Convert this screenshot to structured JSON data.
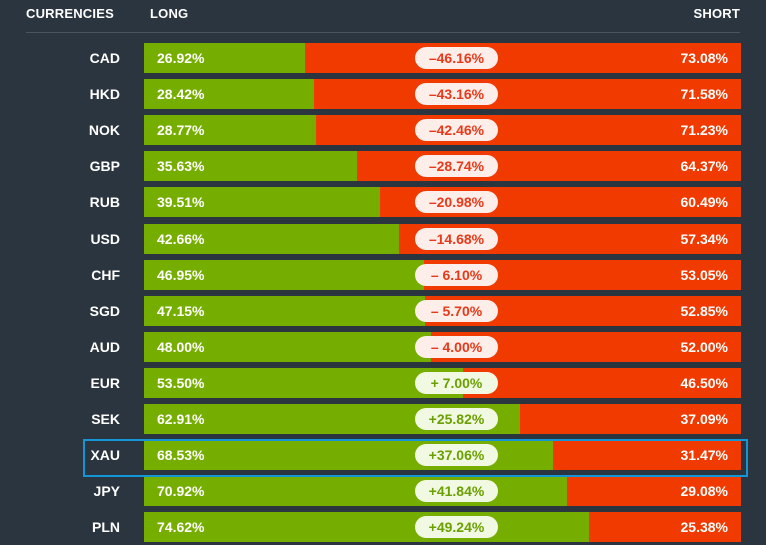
{
  "header": {
    "currencies": "CURRENCIES",
    "long": "LONG",
    "short": "SHORT"
  },
  "colors": {
    "background": "#2b353f",
    "long": "#76ae00",
    "short": "#f03a00",
    "highlight": "#1496d6"
  },
  "rows": [
    {
      "currency": "CAD",
      "long": "26.92%",
      "short": "73.08%",
      "diff": "–46.16%",
      "long_pct": 26.92,
      "positive": false
    },
    {
      "currency": "HKD",
      "long": "28.42%",
      "short": "71.58%",
      "diff": "–43.16%",
      "long_pct": 28.42,
      "positive": false
    },
    {
      "currency": "NOK",
      "long": "28.77%",
      "short": "71.23%",
      "diff": "–42.46%",
      "long_pct": 28.77,
      "positive": false
    },
    {
      "currency": "GBP",
      "long": "35.63%",
      "short": "64.37%",
      "diff": "–28.74%",
      "long_pct": 35.63,
      "positive": false
    },
    {
      "currency": "RUB",
      "long": "39.51%",
      "short": "60.49%",
      "diff": "–20.98%",
      "long_pct": 39.51,
      "positive": false
    },
    {
      "currency": "USD",
      "long": "42.66%",
      "short": "57.34%",
      "diff": "–14.68%",
      "long_pct": 42.66,
      "positive": false
    },
    {
      "currency": "CHF",
      "long": "46.95%",
      "short": "53.05%",
      "diff": "– 6.10%",
      "long_pct": 46.95,
      "positive": false
    },
    {
      "currency": "SGD",
      "long": "47.15%",
      "short": "52.85%",
      "diff": "– 5.70%",
      "long_pct": 47.15,
      "positive": false
    },
    {
      "currency": "AUD",
      "long": "48.00%",
      "short": "52.00%",
      "diff": "– 4.00%",
      "long_pct": 48.0,
      "positive": false
    },
    {
      "currency": "EUR",
      "long": "53.50%",
      "short": "46.50%",
      "diff": "+ 7.00%",
      "long_pct": 53.5,
      "positive": true
    },
    {
      "currency": "SEK",
      "long": "62.91%",
      "short": "37.09%",
      "diff": "+25.82%",
      "long_pct": 62.91,
      "positive": true
    },
    {
      "currency": "XAU",
      "long": "68.53%",
      "short": "31.47%",
      "diff": "+37.06%",
      "long_pct": 68.53,
      "positive": true,
      "selected": true
    },
    {
      "currency": "JPY",
      "long": "70.92%",
      "short": "29.08%",
      "diff": "+41.84%",
      "long_pct": 70.92,
      "positive": true
    },
    {
      "currency": "PLN",
      "long": "74.62%",
      "short": "25.38%",
      "diff": "+49.24%",
      "long_pct": 74.62,
      "positive": true
    }
  ]
}
